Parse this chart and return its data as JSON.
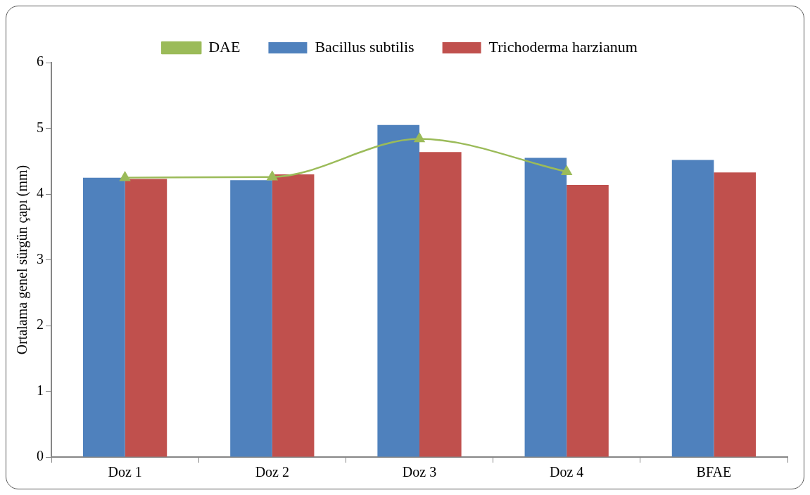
{
  "chart_data": {
    "type": "bar",
    "ylabel": "Ortalama genel sürgün çapı (mm)",
    "categories": [
      "Doz 1",
      "Doz 2",
      "Doz 3",
      "Doz 4",
      "BFAE"
    ],
    "series": [
      {
        "name": "Bacillus subtilis",
        "color": "#4f81bd",
        "values": [
          4.25,
          4.21,
          5.05,
          4.55,
          4.52
        ]
      },
      {
        "name": "Trichoderma harzianum",
        "color": "#c0504d",
        "values": [
          4.23,
          4.3,
          4.64,
          4.14,
          4.33
        ]
      },
      {
        "name": "DAE",
        "type": "line",
        "color": "#9bbb59",
        "marker": "triangle",
        "values": [
          4.25,
          4.26,
          4.84,
          4.34,
          null
        ]
      }
    ],
    "ylim": [
      0,
      6
    ],
    "yticks": [
      0,
      1,
      2,
      3,
      4,
      5,
      6
    ],
    "grid": false,
    "legend": "top"
  }
}
